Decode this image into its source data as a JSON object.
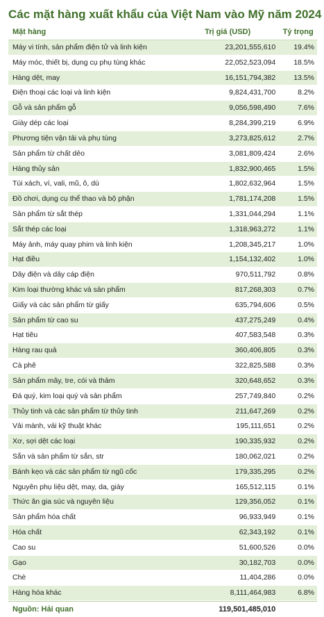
{
  "title": "Các mặt hàng xuất khẩu của Việt Nam vào Mỹ năm 2024",
  "header": {
    "name": "Mặt hàng",
    "value": "Trị giá (USD)",
    "share": "Tỷ trọng"
  },
  "rows": [
    {
      "name": "Máy vi tính, sản phẩm điện tử và linh kiện",
      "value": "23,201,555,610",
      "share": "19.4%"
    },
    {
      "name": "Máy móc, thiết bị, dụng cụ phụ tùng khác",
      "value": "22,052,523,094",
      "share": "18.5%"
    },
    {
      "name": "Hàng dệt, may",
      "value": "16,151,794,382",
      "share": "13.5%"
    },
    {
      "name": "Điện thoại các loại và linh kiện",
      "value": "9,824,431,700",
      "share": "8.2%"
    },
    {
      "name": "Gỗ và sản phẩm gỗ",
      "value": "9,056,598,490",
      "share": "7.6%"
    },
    {
      "name": "Giày dép các loại",
      "value": "8,284,399,219",
      "share": "6.9%"
    },
    {
      "name": "Phương tiện vận tải và phụ tùng",
      "value": "3,273,825,612",
      "share": "2.7%"
    },
    {
      "name": "Sản phẩm từ chất dẻo",
      "value": "3,081,809,424",
      "share": "2.6%"
    },
    {
      "name": "Hàng thủy sản",
      "value": "1,832,900,465",
      "share": "1.5%"
    },
    {
      "name": "Túi xách, ví, vali, mũ, ô, dù",
      "value": "1,802,632,964",
      "share": "1.5%"
    },
    {
      "name": "Đồ chơi, dụng cụ thể thao và bộ phận",
      "value": "1,781,174,208",
      "share": "1.5%"
    },
    {
      "name": "Sản phẩm từ sắt thép",
      "value": "1,331,044,294",
      "share": "1.1%"
    },
    {
      "name": "Sắt thép các loại",
      "value": "1,318,963,272",
      "share": "1.1%"
    },
    {
      "name": "Máy ảnh, máy quay phim và linh kiện",
      "value": "1,208,345,217",
      "share": "1.0%"
    },
    {
      "name": "Hạt điều",
      "value": "1,154,132,402",
      "share": "1.0%"
    },
    {
      "name": "Dây điện và dây cáp điện",
      "value": "970,511,792",
      "share": "0.8%"
    },
    {
      "name": "Kim loại thường khác và sản phẩm",
      "value": "817,268,303",
      "share": "0.7%"
    },
    {
      "name": "Giấy và các sản phẩm từ giấy",
      "value": "635,794,606",
      "share": "0.5%"
    },
    {
      "name": "Sản phẩm từ cao su",
      "value": "437,275,249",
      "share": "0.4%"
    },
    {
      "name": "Hạt tiêu",
      "value": "407,583,548",
      "share": "0.3%"
    },
    {
      "name": "Hàng rau quả",
      "value": "360,406,805",
      "share": "0.3%"
    },
    {
      "name": "Cà phê",
      "value": "322,825,588",
      "share": "0.3%"
    },
    {
      "name": "Sản phẩm mây, tre, cói và thảm",
      "value": "320,648,652",
      "share": "0.3%"
    },
    {
      "name": "Đá quý, kim loại quý và sản phẩm",
      "value": "257,749,840",
      "share": "0.2%"
    },
    {
      "name": "Thủy tinh và các sản phẩm từ thủy tinh",
      "value": "211,647,269",
      "share": "0.2%"
    },
    {
      "name": "Vải mành, vải kỹ thuật khác",
      "value": "195,111,651",
      "share": "0.2%"
    },
    {
      "name": "Xơ, sợi dệt các loại",
      "value": "190,335,932",
      "share": "0.2%"
    },
    {
      "name": "Sắn và sản phẩm từ sắn, str",
      "value": "180,062,021",
      "share": "0.2%"
    },
    {
      "name": "Bánh kẹo và các sản phẩm từ ngũ cốc",
      "value": "179,335,295",
      "share": "0.2%"
    },
    {
      "name": "Nguyên phụ liệu dệt, may, da, giày",
      "value": "165,512,115",
      "share": "0.1%"
    },
    {
      "name": "Thức ăn gia súc và nguyên liệu",
      "value": "129,356,052",
      "share": "0.1%"
    },
    {
      "name": "Sản phẩm hóa chất",
      "value": "96,933,949",
      "share": "0.1%"
    },
    {
      "name": "Hóa chất",
      "value": "62,343,192",
      "share": "0.1%"
    },
    {
      "name": "Cao su",
      "value": "51,600,526",
      "share": "0.0%"
    },
    {
      "name": "Gạo",
      "value": "30,182,703",
      "share": "0.0%"
    },
    {
      "name": "Chè",
      "value": "11,404,286",
      "share": "0.0%"
    },
    {
      "name": "Hàng hóa khác",
      "value": "8,111,464,983",
      "share": "6.8%"
    }
  ],
  "footer": {
    "source": "Nguồn: Hải quan",
    "total": "119,501,485,010"
  }
}
